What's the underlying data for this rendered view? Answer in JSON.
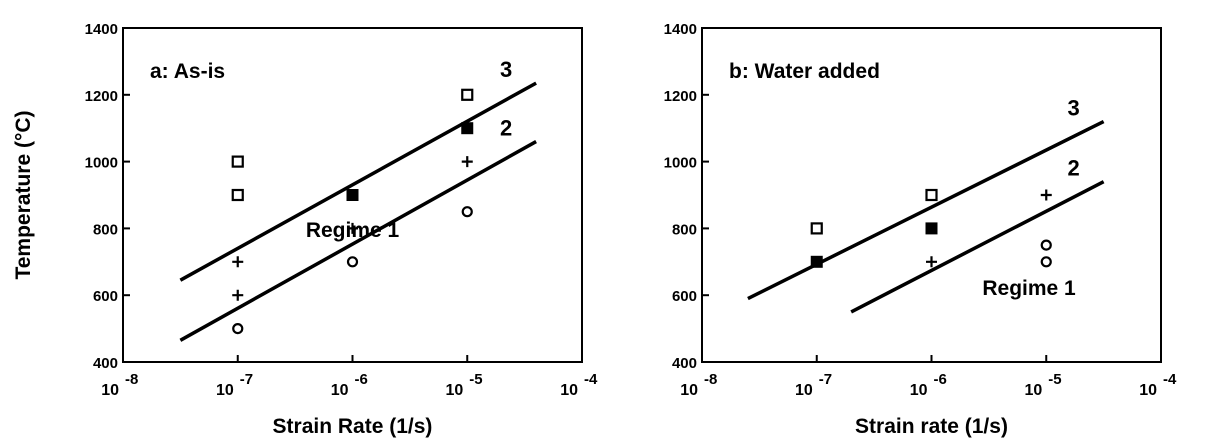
{
  "chart_data": [
    {
      "type": "scatter",
      "title": "a: As-is",
      "xlabel": "Strain Rate (1/s)",
      "ylabel": "Temperature (°C)",
      "x_scale": "log10",
      "xlim": [
        -8,
        -4
      ],
      "ylim": [
        400,
        1400
      ],
      "x_ticks": [
        {
          "base": "10",
          "exp": "-8"
        },
        {
          "base": "10",
          "exp": "-7"
        },
        {
          "base": "10",
          "exp": "-6"
        },
        {
          "base": "10",
          "exp": "-5"
        },
        {
          "base": "10",
          "exp": "-4"
        }
      ],
      "y_ticks": [
        "400",
        "600",
        "800",
        "1000",
        "1200",
        "1400"
      ],
      "series": [
        {
          "marker": "open-square",
          "points": [
            [
              -7,
              1000
            ],
            [
              -7,
              900
            ],
            [
              -5,
              1200
            ]
          ]
        },
        {
          "marker": "filled-square",
          "points": [
            [
              -6,
              900
            ],
            [
              -5,
              1100
            ]
          ]
        },
        {
          "marker": "plus",
          "points": [
            [
              -7,
              700
            ],
            [
              -7,
              600
            ],
            [
              -6,
              800
            ],
            [
              -5,
              1000
            ]
          ]
        },
        {
          "marker": "open-circle",
          "points": [
            [
              -7,
              500
            ],
            [
              -6,
              700
            ],
            [
              -5,
              850
            ]
          ]
        }
      ],
      "boundaries": [
        {
          "label": "3",
          "x": [
            -7.5,
            -4.4
          ],
          "y": [
            645,
            1235
          ]
        },
        {
          "label": "2",
          "x": [
            -7.5,
            -4.4
          ],
          "y": [
            465,
            1060
          ]
        }
      ],
      "regions": [
        {
          "label": "Regime 1",
          "x": -6.0,
          "y": 775
        }
      ]
    },
    {
      "type": "scatter",
      "title": "b: Water added",
      "xlabel": "Strain rate (1/s)",
      "ylabel": "",
      "x_scale": "log10",
      "xlim": [
        -8,
        -4
      ],
      "ylim": [
        400,
        1400
      ],
      "x_ticks": [
        {
          "base": "10",
          "exp": "-8"
        },
        {
          "base": "10",
          "exp": "-7"
        },
        {
          "base": "10",
          "exp": "-6"
        },
        {
          "base": "10",
          "exp": "-5"
        },
        {
          "base": "10",
          "exp": "-4"
        }
      ],
      "y_ticks": [
        "400",
        "600",
        "800",
        "1000",
        "1200",
        "1400"
      ],
      "series": [
        {
          "marker": "open-square",
          "points": [
            [
              -7,
              800
            ],
            [
              -6,
              900
            ]
          ]
        },
        {
          "marker": "filled-square",
          "points": [
            [
              -7,
              700
            ],
            [
              -6,
              800
            ]
          ]
        },
        {
          "marker": "plus",
          "points": [
            [
              -6,
              700
            ],
            [
              -5,
              900
            ]
          ]
        },
        {
          "marker": "open-circle",
          "points": [
            [
              -5,
              750
            ],
            [
              -5,
              700
            ]
          ]
        }
      ],
      "boundaries": [
        {
          "label": "3",
          "x": [
            -7.6,
            -4.5
          ],
          "y": [
            590,
            1120
          ]
        },
        {
          "label": "2",
          "x": [
            -6.7,
            -4.5
          ],
          "y": [
            550,
            940
          ]
        }
      ],
      "regions": [
        {
          "label": "Regime 1",
          "x": -5.15,
          "y": 600
        }
      ]
    }
  ]
}
